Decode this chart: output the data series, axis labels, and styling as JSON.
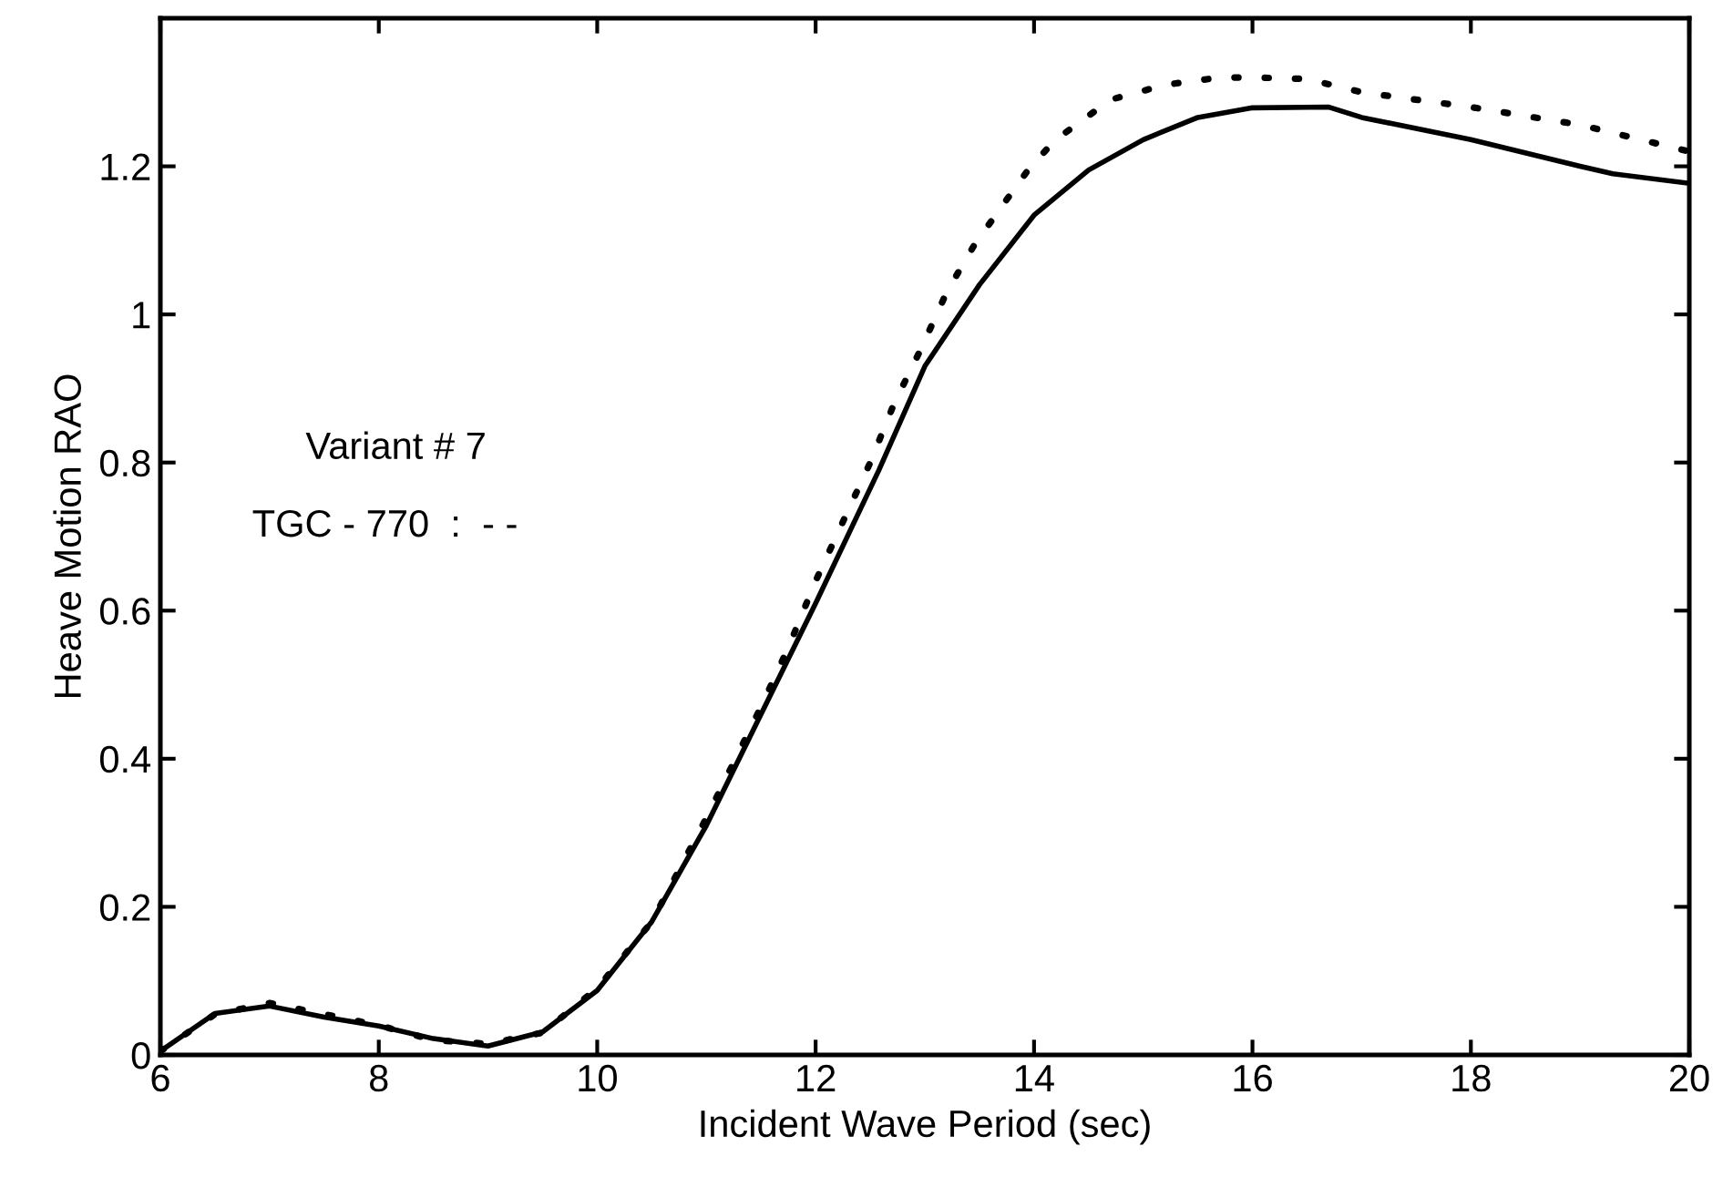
{
  "chart_data": {
    "type": "line",
    "xlabel": "Incident Wave Period (sec)",
    "ylabel": "Heave Motion RAO",
    "xlim": [
      6,
      20
    ],
    "xticks": [
      6,
      8,
      10,
      12,
      14,
      16,
      18,
      20
    ],
    "ylim": [
      0,
      1.4
    ],
    "yticks": [
      0,
      0.2,
      0.4,
      0.6,
      0.8,
      1,
      1.2
    ],
    "grid": false,
    "marker": "none",
    "annotations": [
      "Variant # 7",
      "TGC - 770  :  - -"
    ],
    "series": [
      {
        "color": "#000000",
        "line_style": "solid",
        "x": [
          6,
          6.5,
          7,
          7.5,
          8,
          8.5,
          9,
          9.5,
          10,
          10.5,
          11,
          11.5,
          12,
          12.58,
          13,
          13.5,
          14,
          14.5,
          15,
          15.5,
          16,
          16.7,
          17,
          18,
          19,
          19.3,
          20
        ],
        "values": [
          0.005,
          0.056,
          0.066,
          0.051,
          0.039,
          0.022,
          0.012,
          0.031,
          0.087,
          0.18,
          0.31,
          0.46,
          0.61,
          0.79,
          0.93,
          1.04,
          1.134,
          1.195,
          1.236,
          1.266,
          1.279,
          1.28,
          1.266,
          1.236,
          1.2,
          1.19,
          1.177
        ]
      },
      {
        "color": "#000000",
        "line_style": "dotted",
        "x": [
          6,
          6.5,
          7,
          7.5,
          8,
          8.5,
          9,
          9.5,
          10,
          10.5,
          11,
          11.5,
          11.75,
          12,
          12.25,
          12.5,
          12.72,
          12.97,
          13.2,
          13.45,
          13.72,
          13.97,
          14.2,
          14.7,
          15.2,
          15.7,
          16,
          16.5,
          17,
          18,
          19,
          20
        ],
        "values": [
          0.005,
          0.055,
          0.07,
          0.055,
          0.04,
          0.02,
          0.015,
          0.03,
          0.09,
          0.18,
          0.32,
          0.47,
          0.55,
          0.64,
          0.72,
          0.8,
          0.88,
          0.955,
          1.03,
          1.093,
          1.149,
          1.2,
          1.236,
          1.29,
          1.31,
          1.32,
          1.32,
          1.318,
          1.3,
          1.28,
          1.256,
          1.22
        ]
      }
    ]
  }
}
